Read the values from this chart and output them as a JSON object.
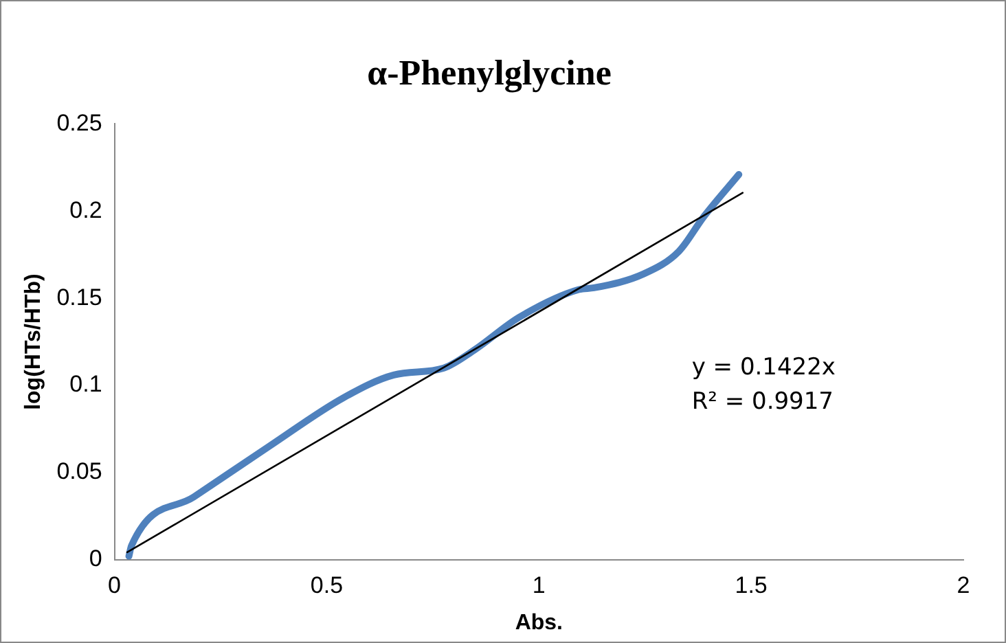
{
  "chart_data": {
    "type": "line",
    "title": "α-Phenylglycine",
    "xlabel": "Abs.",
    "ylabel": "log(HTs/HTb)",
    "xlim": [
      0,
      2
    ],
    "xticks": [
      0,
      0.5,
      1,
      1.5,
      2
    ],
    "ylim": [
      0,
      0.25
    ],
    "yticks": [
      0,
      0.05,
      0.1,
      0.15,
      0.2,
      0.25
    ],
    "grid": false,
    "legend": false,
    "marker": "none",
    "annotations": [
      "y = 0.1422x",
      "R² = 0.9917"
    ],
    "series": [
      {
        "color": "#4f81bd",
        "x": [
          0.034,
          0.04,
          0.187,
          0.364,
          0.54,
          0.658,
          0.776,
          0.846,
          0.953,
          1.094,
          1.13,
          1.247,
          1.33,
          1.389,
          1.471
        ],
        "values": [
          0.002,
          0.008,
          0.036,
          0.065,
          0.093,
          0.106,
          0.11,
          0.12,
          0.139,
          0.155,
          0.156,
          0.164,
          0.177,
          0.197,
          0.221
        ]
      },
      {
        "type": "line",
        "color": "#000000",
        "x": [
          0.03,
          1.48
        ],
        "values": [
          0.0043,
          0.2105
        ]
      }
    ]
  }
}
